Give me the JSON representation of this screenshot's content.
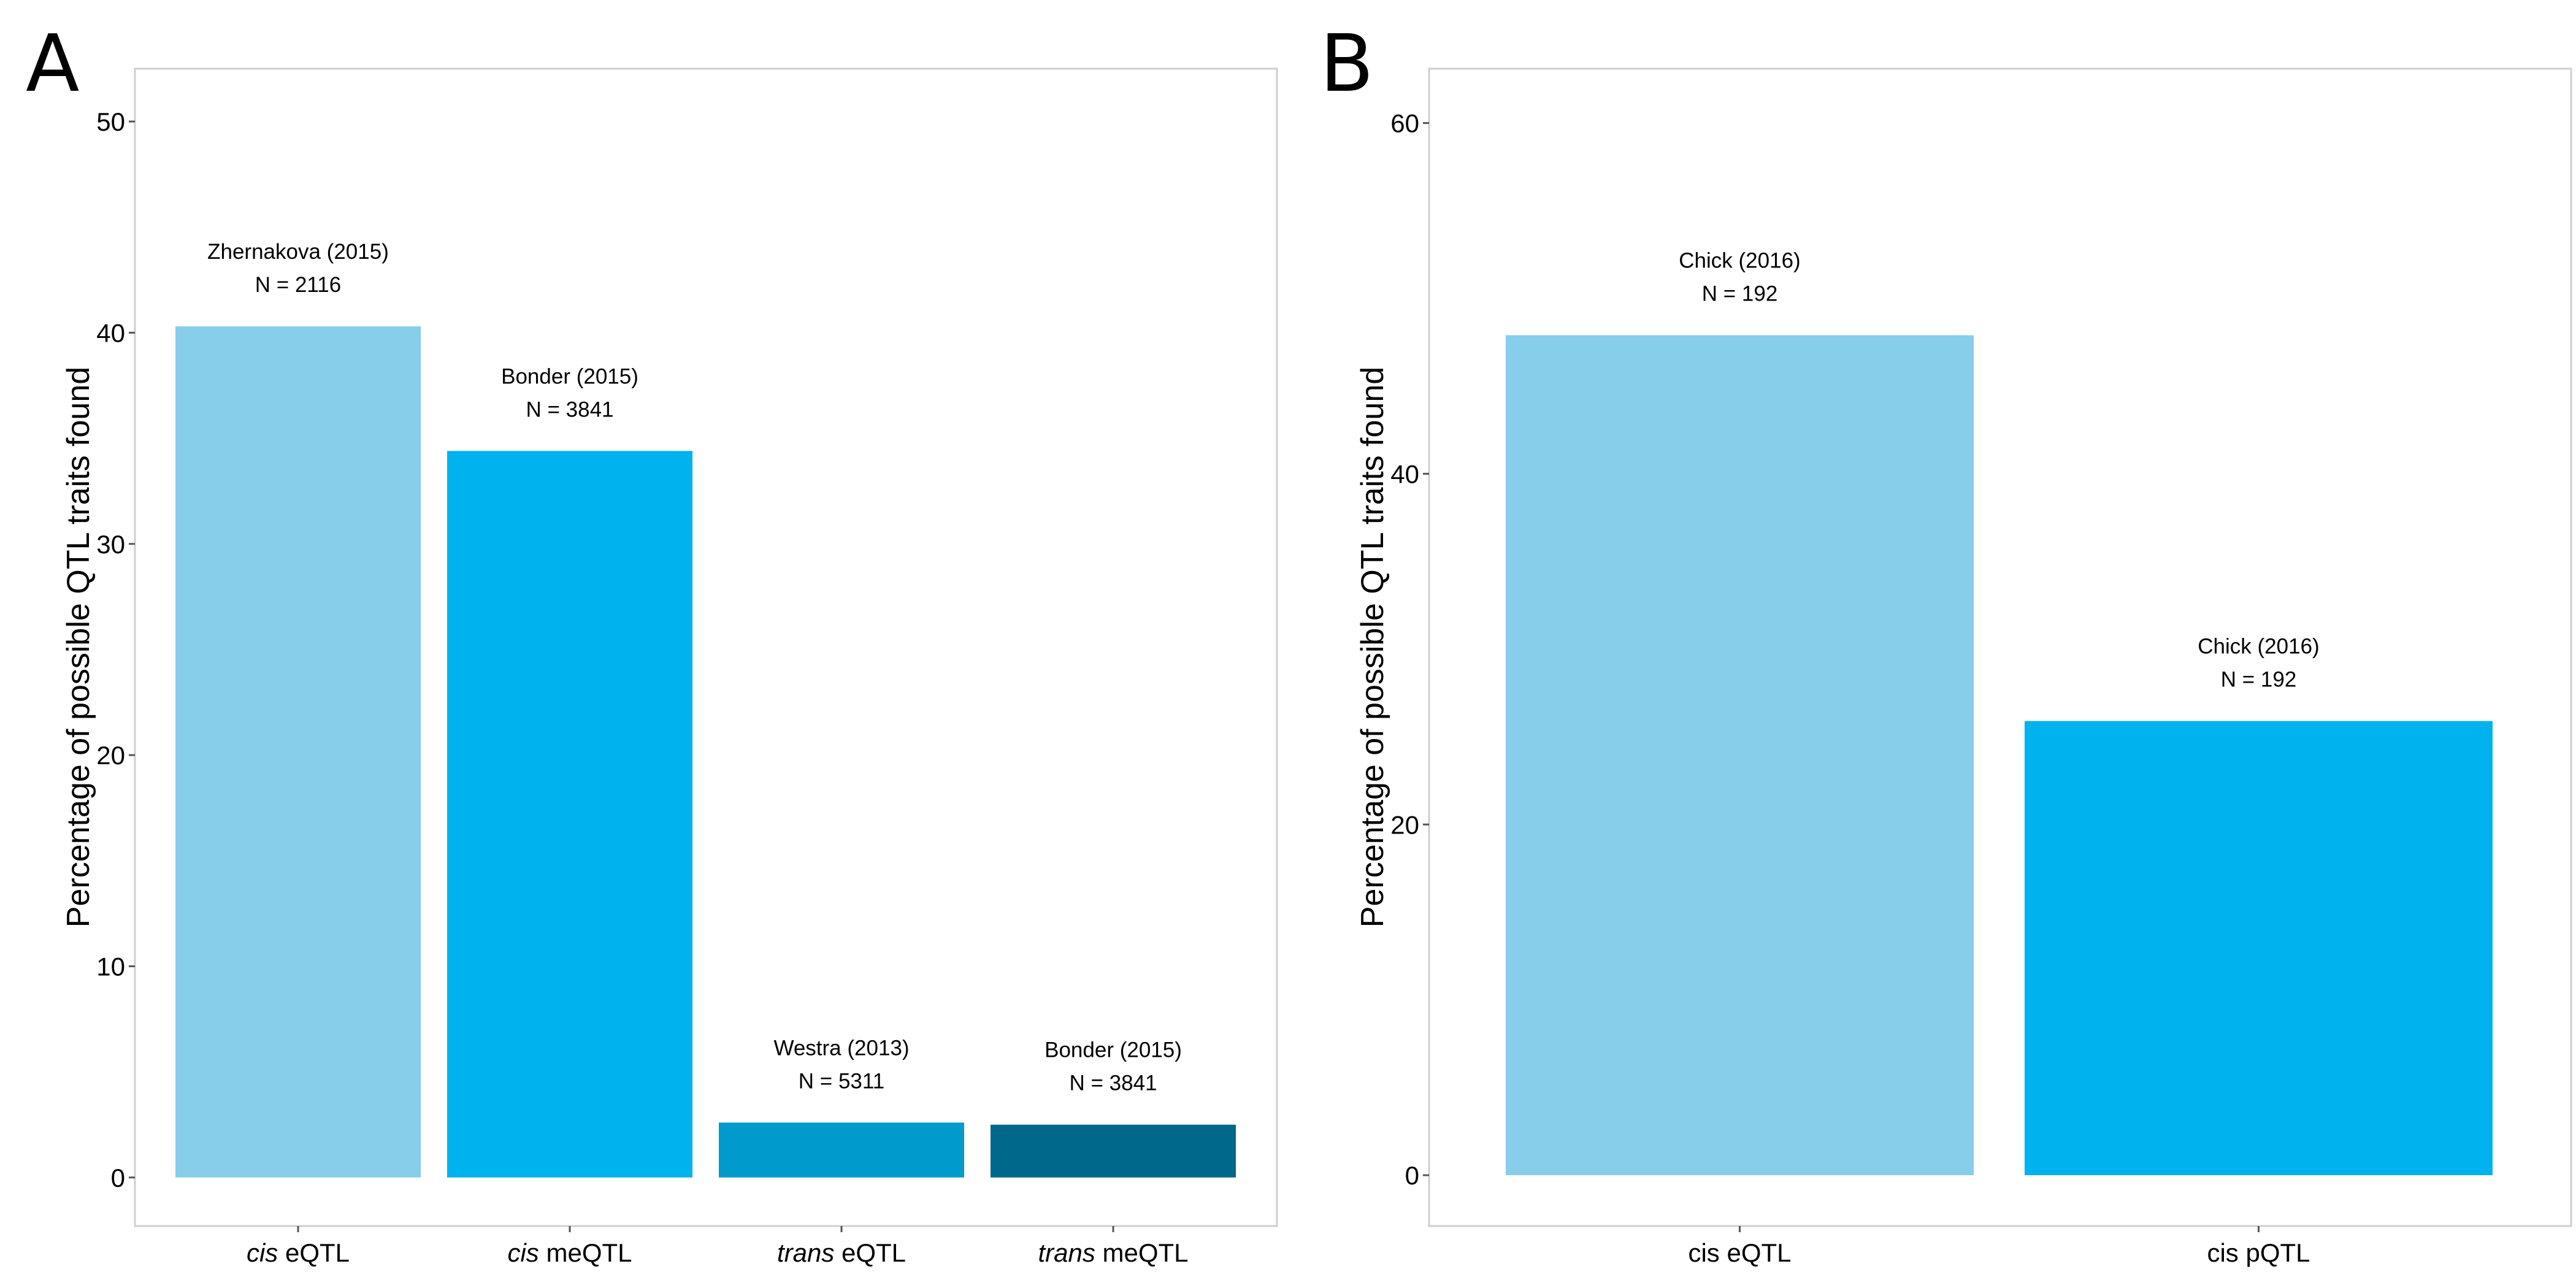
{
  "chart_data": [
    {
      "type": "bar",
      "panel_label": "A",
      "ylabel": "Percentage of possible QTL traits found",
      "xlabel": "",
      "ylim": [
        -2.3,
        52.5
      ],
      "yticks": [
        0,
        10,
        20,
        30,
        40,
        50
      ],
      "grid": false,
      "categories": [
        {
          "prefix": "cis",
          "suffix": " eQTL"
        },
        {
          "prefix": "cis",
          "suffix": " meQTL"
        },
        {
          "prefix": "trans",
          "suffix": " eQTL"
        },
        {
          "prefix": "trans",
          "suffix": " meQTL"
        }
      ],
      "values": [
        40.3,
        34.4,
        2.6,
        2.5
      ],
      "colors": [
        "#87CEEB",
        "#00B2EE",
        "#009ACD",
        "#00688B"
      ],
      "annotations": [
        {
          "source": "Zhernakova (2015)",
          "n": "N = 2116"
        },
        {
          "source": "Bonder (2015)",
          "n": "N = 3841"
        },
        {
          "source": "Westra (2013)",
          "n": "N = 5311"
        },
        {
          "source": "Bonder (2015)",
          "n": "N = 3841"
        }
      ]
    },
    {
      "type": "bar",
      "panel_label": "B",
      "ylabel": "Percentage of possible QTL traits found",
      "xlabel": "",
      "ylim": [
        -2.9,
        63.1
      ],
      "yticks": [
        0,
        20,
        40,
        60
      ],
      "grid": false,
      "categories": [
        {
          "prefix": "",
          "suffix": "cis eQTL"
        },
        {
          "prefix": "",
          "suffix": "cis pQTL"
        }
      ],
      "values": [
        47.9,
        25.9
      ],
      "colors": [
        "#87CEEB",
        "#00B2EE"
      ],
      "annotations": [
        {
          "source": "Chick (2016)",
          "n": "N = 192"
        },
        {
          "source": "Chick (2016)",
          "n": "N = 192"
        }
      ]
    }
  ]
}
